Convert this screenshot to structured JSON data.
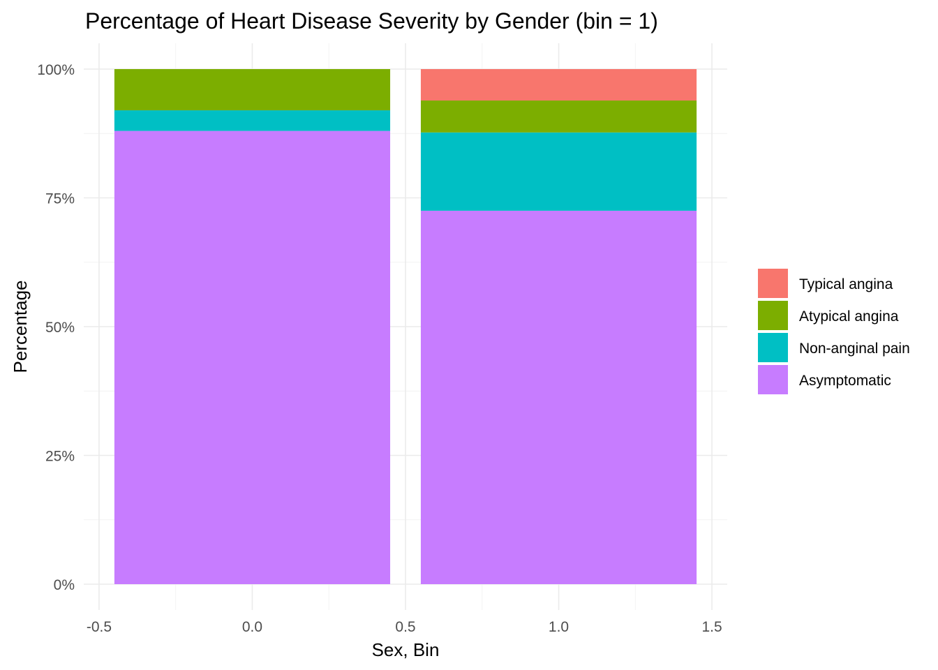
{
  "chart_data": {
    "type": "bar",
    "stacked": true,
    "title": "Percentage of Heart Disease Severity by Gender (bin = 1)",
    "xlabel": "Sex, Bin",
    "ylabel": "Percentage",
    "xlim": [
      -0.55,
      1.55
    ],
    "ylim": [
      0,
      1
    ],
    "bar_width": 0.9,
    "x_ticks": [
      -0.5,
      0.0,
      0.5,
      1.0,
      1.5
    ],
    "x_tick_labels": [
      "-0.5",
      "0.0",
      "0.5",
      "1.0",
      "1.5"
    ],
    "y_ticks": [
      0,
      0.25,
      0.5,
      0.75,
      1.0
    ],
    "y_tick_labels": [
      "0%",
      "25%",
      "50%",
      "75%",
      "100%"
    ],
    "grid": true,
    "legend_position": "right",
    "x": [
      0,
      1
    ],
    "series": [
      {
        "name": "Asymptomatic",
        "color": "#C77CFF",
        "values": [
          0.88,
          0.725
        ]
      },
      {
        "name": "Non-anginal pain",
        "color": "#00BFC4",
        "values": [
          0.04,
          0.152
        ]
      },
      {
        "name": "Atypical angina",
        "color": "#7CAE00",
        "values": [
          0.08,
          0.062
        ]
      },
      {
        "name": "Typical angina",
        "color": "#F8766D",
        "values": [
          0.0,
          0.061
        ]
      }
    ],
    "legend_order": [
      "Typical angina",
      "Atypical angina",
      "Non-anginal pain",
      "Asymptomatic"
    ]
  }
}
